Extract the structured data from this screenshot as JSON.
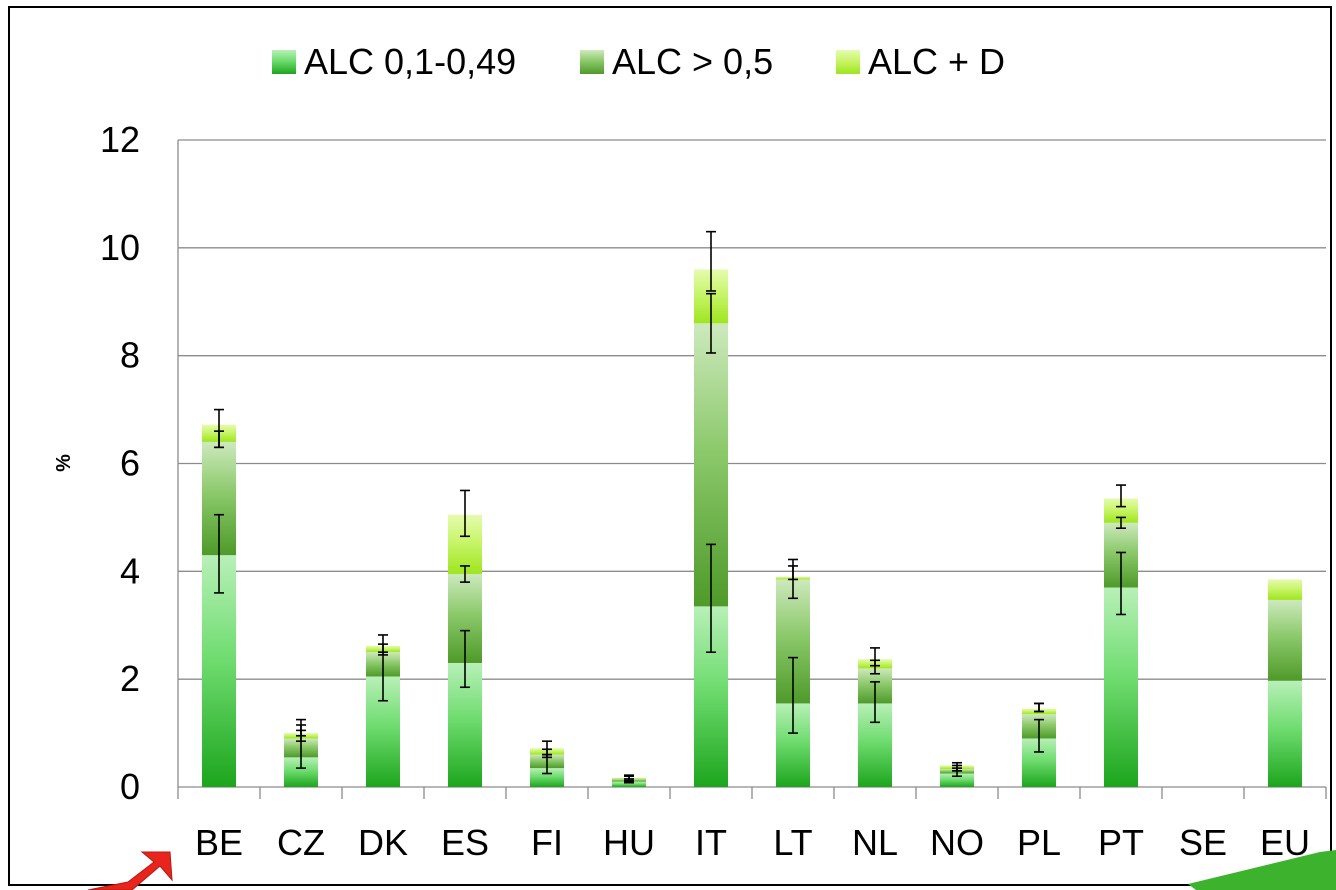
{
  "chart_data": {
    "type": "bar",
    "stacked": true,
    "title": "",
    "xlabel": "",
    "ylabel": "%",
    "ylim": [
      0,
      12
    ],
    "yticks": [
      0,
      2,
      4,
      6,
      8,
      10,
      12
    ],
    "grid": true,
    "legend_position": "top",
    "categories": [
      "BE",
      "CZ",
      "DK",
      "ES",
      "FI",
      "HU",
      "IT",
      "LT",
      "NL",
      "NO",
      "PL",
      "PT",
      "SE",
      "EU"
    ],
    "series": [
      {
        "name": "ALC 0,1-0,49",
        "color": "#2db52d",
        "values": [
          4.3,
          0.55,
          2.05,
          2.3,
          0.35,
          0.1,
          3.35,
          1.55,
          1.55,
          0.25,
          0.9,
          3.7,
          0,
          1.97
        ],
        "error_low": [
          3.6,
          0.35,
          1.6,
          1.85,
          0.25,
          0.08,
          2.5,
          1.0,
          1.2,
          0.2,
          0.65,
          3.2,
          null,
          null
        ],
        "error_high": [
          5.05,
          1.05,
          2.5,
          2.9,
          0.6,
          0.15,
          4.5,
          2.4,
          1.95,
          0.35,
          1.25,
          4.35,
          null,
          null
        ]
      },
      {
        "name": "ALC > 0,5",
        "color": "#5fa83a",
        "values": [
          2.1,
          0.35,
          0.45,
          1.65,
          0.25,
          0.05,
          5.25,
          2.3,
          0.65,
          0.08,
          0.45,
          1.2,
          0,
          1.5
        ],
        "error_low": [
          6.3,
          0.85,
          2.45,
          3.8,
          0.55,
          0.12,
          8.05,
          3.5,
          2.1,
          0.3,
          1.4,
          4.8,
          null,
          null
        ],
        "error_high": [
          6.6,
          1.15,
          2.65,
          4.1,
          0.7,
          0.2,
          9.15,
          4.1,
          2.35,
          0.4,
          1.55,
          5.0,
          null,
          null
        ]
      },
      {
        "name": "ALC + D",
        "color": "#a6f02a",
        "values": [
          0.32,
          0.1,
          0.12,
          1.1,
          0.12,
          0.02,
          1.0,
          0.05,
          0.17,
          0.07,
          0.1,
          0.45,
          0,
          0.38
        ],
        "error_low": [
          6.3,
          0.95,
          2.5,
          4.65,
          0.6,
          0.1,
          9.2,
          3.85,
          2.25,
          0.3,
          1.4,
          5.2,
          null,
          null
        ],
        "error_high": [
          7.0,
          1.25,
          2.82,
          5.5,
          0.85,
          0.22,
          10.3,
          4.22,
          2.58,
          0.45,
          1.55,
          5.6,
          null,
          null
        ]
      }
    ]
  }
}
